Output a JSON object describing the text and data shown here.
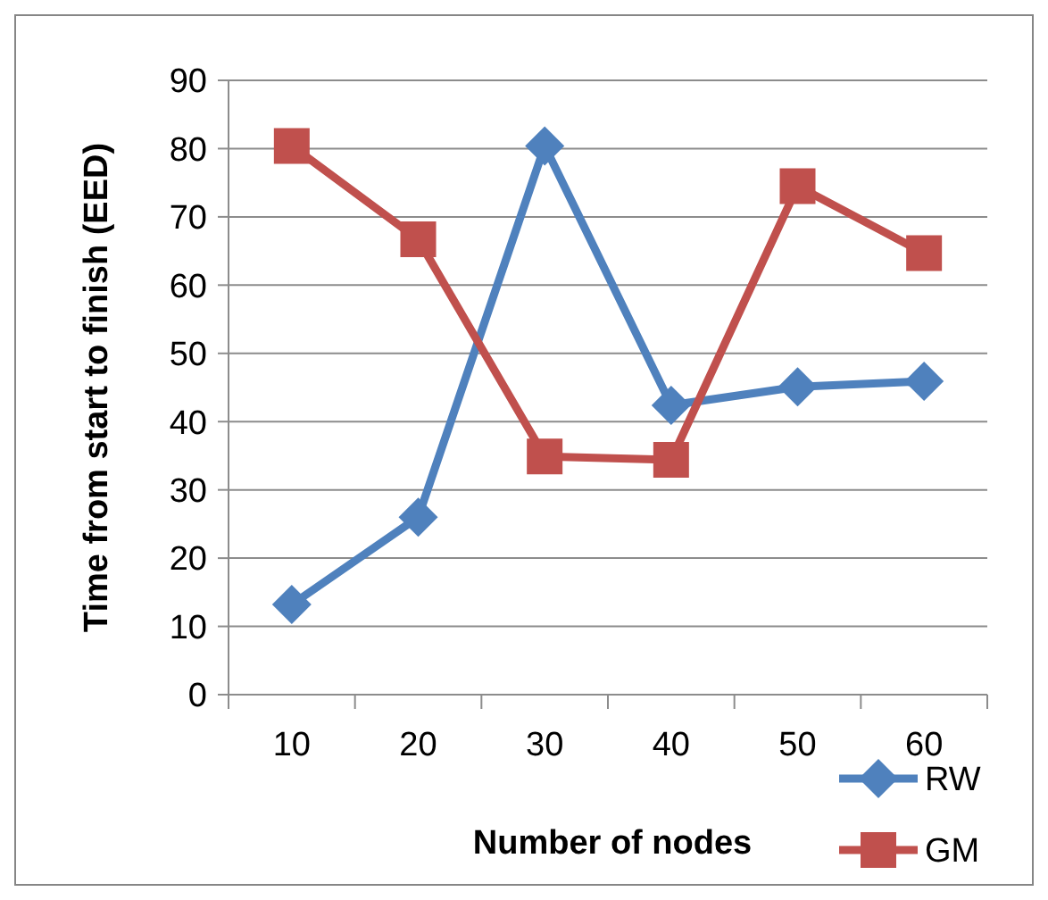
{
  "chart_data": {
    "type": "line",
    "xlabel": "Number of nodes",
    "ylabel": "Time from start to finish (EED)",
    "categories": [
      "10",
      "20",
      "30",
      "40",
      "50",
      "60"
    ],
    "ylim": [
      0,
      90
    ],
    "yticks": [
      0,
      10,
      20,
      30,
      40,
      50,
      60,
      70,
      80,
      90
    ],
    "grid": "y",
    "legend": "bottom right",
    "series": [
      {
        "name": "RW",
        "color": "#4f81bd",
        "marker": "diamond",
        "values": [
          13.2,
          26,
          80.4,
          42.4,
          45.1,
          45.9
        ]
      },
      {
        "name": "GM",
        "color": "#c0504d",
        "marker": "square",
        "values": [
          80.4,
          66.7,
          34.9,
          34.4,
          74.5,
          64.7
        ]
      }
    ]
  }
}
